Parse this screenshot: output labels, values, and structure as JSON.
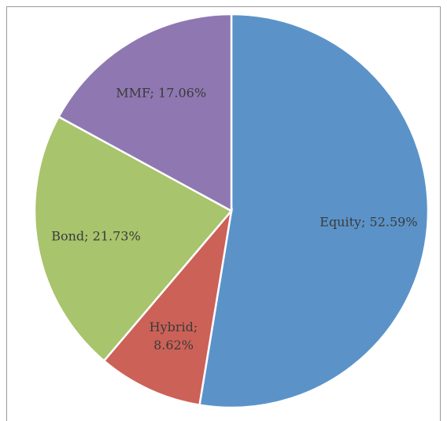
{
  "chart_data": {
    "type": "pie",
    "categories": [
      "Equity",
      "Hybrid",
      "Bond",
      "MMF"
    ],
    "values": [
      52.59,
      8.62,
      21.73,
      17.06
    ],
    "value_labels": [
      "Equity; 52.59%",
      "Hybrid; 8.62%",
      "Bond; 21.73%",
      "MMF; 17.06%"
    ],
    "colors": [
      "#5b93c9",
      "#cc6158",
      "#a8c46c",
      "#8f78b1"
    ]
  }
}
